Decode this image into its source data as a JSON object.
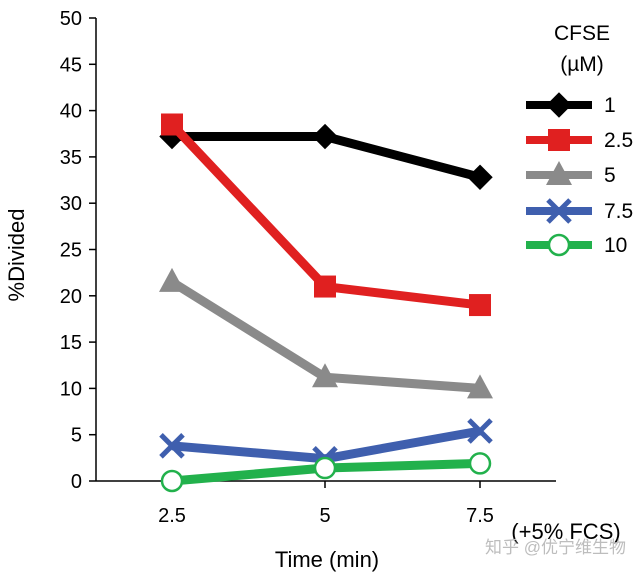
{
  "chart_data": {
    "type": "line",
    "x": [
      2.5,
      5,
      7.5
    ],
    "x_tick_labels": [
      "2.5",
      "5",
      "7.5"
    ],
    "xlabel": "Time (min)",
    "x_extra_label": "(+5% FCS)",
    "ylabel": "%Divided",
    "ylim": [
      0,
      50
    ],
    "y_ticks": [
      0,
      5,
      10,
      15,
      20,
      25,
      30,
      35,
      40,
      45,
      50
    ],
    "grid": false,
    "legend": {
      "title_line1": "CFSE",
      "title_line2": "(µM)",
      "position": "top-right"
    },
    "series": [
      {
        "name": "1",
        "values": [
          37.2,
          37.2,
          32.8
        ],
        "color": "#000000",
        "marker": "diamond"
      },
      {
        "name": "2.5",
        "values": [
          38.5,
          21.0,
          19.0
        ],
        "color": "#e02020",
        "marker": "square"
      },
      {
        "name": "5",
        "values": [
          21.5,
          11.2,
          10.0
        ],
        "color": "#8a8a8a",
        "marker": "triangle"
      },
      {
        "name": "7.5",
        "values": [
          3.8,
          2.4,
          5.4
        ],
        "color": "#3f5fae",
        "marker": "x"
      },
      {
        "name": "10",
        "values": [
          0.0,
          1.4,
          1.9
        ],
        "color": "#22b14c",
        "marker": "circle-open"
      }
    ]
  },
  "watermark": "知乎 @优宁维生物"
}
